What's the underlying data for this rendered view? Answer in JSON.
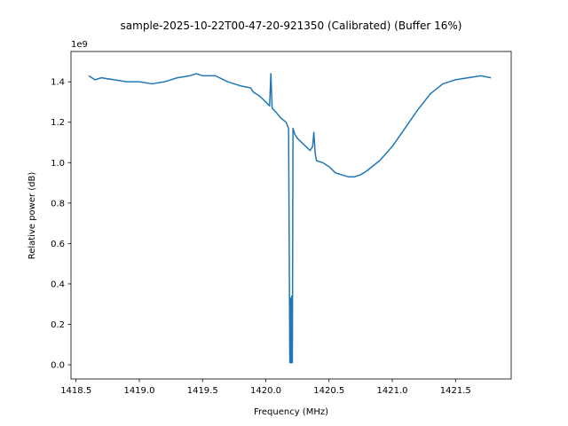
{
  "chart_data": {
    "type": "line",
    "title": "sample-2025-10-22T00-47-20-921350 (Calibrated) (Buffer 16%)",
    "xlabel": "Frequency (MHz)",
    "ylabel": "Relative power (dB)",
    "y_offset_label": "1e9",
    "xlim": [
      1418.46,
      1421.94
    ],
    "ylim": [
      -0.07,
      1.55
    ],
    "y_scale_exponent": 9,
    "x_ticks": [
      1418.5,
      1419.0,
      1419.5,
      1420.0,
      1420.5,
      1421.0,
      1421.5
    ],
    "x_tick_labels": [
      "1418.5",
      "1419.0",
      "1419.5",
      "1420.0",
      "1420.5",
      "1421.0",
      "1421.5"
    ],
    "y_ticks": [
      0.0,
      0.2,
      0.4,
      0.6,
      0.8,
      1.0,
      1.2,
      1.4
    ],
    "y_tick_labels": [
      "0.0",
      "0.2",
      "0.4",
      "0.6",
      "0.8",
      "1.0",
      "1.2",
      "1.4"
    ],
    "grid": false,
    "legend": "none",
    "series": [
      {
        "color": "#1f77b4",
        "x": [
          1418.6,
          1418.65,
          1418.7,
          1418.8,
          1418.9,
          1419.0,
          1419.1,
          1419.2,
          1419.3,
          1419.4,
          1419.45,
          1419.5,
          1419.6,
          1419.7,
          1419.8,
          1419.88,
          1419.9,
          1419.95,
          1420.0,
          1420.03,
          1420.04,
          1420.05,
          1420.08,
          1420.12,
          1420.16,
          1420.18,
          1420.19,
          1420.195,
          1420.2,
          1420.205,
          1420.21,
          1420.215,
          1420.22,
          1420.23,
          1420.25,
          1420.3,
          1420.35,
          1420.37,
          1420.38,
          1420.39,
          1420.4,
          1420.45,
          1420.5,
          1420.55,
          1420.6,
          1420.65,
          1420.7,
          1420.75,
          1420.8,
          1420.9,
          1421.0,
          1421.1,
          1421.2,
          1421.3,
          1421.4,
          1421.5,
          1421.6,
          1421.7,
          1421.78
        ],
        "y": [
          1.43,
          1.41,
          1.42,
          1.41,
          1.4,
          1.4,
          1.39,
          1.4,
          1.42,
          1.43,
          1.44,
          1.43,
          1.43,
          1.4,
          1.38,
          1.37,
          1.35,
          1.33,
          1.3,
          1.28,
          1.44,
          1.27,
          1.25,
          1.22,
          1.2,
          1.17,
          0.01,
          0.33,
          0.01,
          0.34,
          0.01,
          1.17,
          1.16,
          1.14,
          1.12,
          1.09,
          1.06,
          1.08,
          1.15,
          1.05,
          1.01,
          1.0,
          0.98,
          0.95,
          0.94,
          0.93,
          0.93,
          0.94,
          0.96,
          1.01,
          1.08,
          1.17,
          1.26,
          1.34,
          1.39,
          1.41,
          1.42,
          1.43,
          1.42
        ]
      }
    ]
  }
}
